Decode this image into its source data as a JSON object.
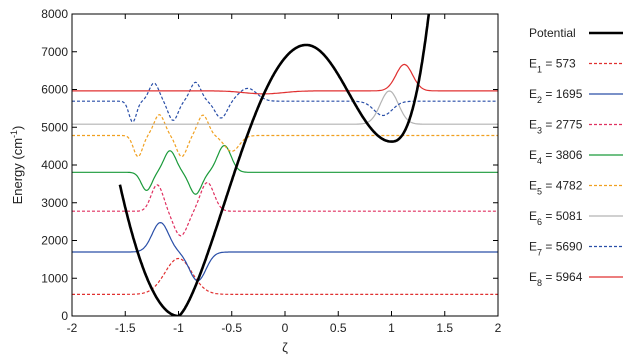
{
  "chart_data": {
    "type": "line",
    "xlabel": "ζ",
    "ylabel_main": "Energy (cm",
    "ylabel_sup": "-1",
    "ylabel_close": ")",
    "xlim": [
      -2,
      2
    ],
    "ylim": [
      0,
      8000
    ],
    "xticks": [
      "-2",
      "-1.5",
      "-1",
      "-0.5",
      "0",
      "0.5",
      "1",
      "1.5",
      "2"
    ],
    "yticks": [
      "0",
      "1000",
      "2000",
      "3000",
      "4000",
      "5000",
      "6000",
      "7000",
      "8000"
    ],
    "legend_position": "right",
    "potential": {
      "name": "Potential",
      "color": "#000000",
      "min_x": -1.0,
      "min_y": 0,
      "max_x": 0.2,
      "max_y": 7180,
      "local_min_x": 1.0,
      "local_min_y": 4620
    },
    "levels": [
      {
        "sym": "E",
        "sub": "1",
        "label_rest": " = 573",
        "energy": 573,
        "color": "#e03030",
        "dash": true,
        "lobes": [
          [
            -1.0,
            950,
            0.18
          ]
        ]
      },
      {
        "sym": "E",
        "sub": "2",
        "label_rest": " = 1695",
        "energy": 1695,
        "color": "#2a4fa8",
        "dash": false,
        "lobes": [
          [
            -1.17,
            780,
            0.11
          ],
          [
            -0.82,
            -760,
            0.11
          ]
        ]
      },
      {
        "sym": "E",
        "sub": "3",
        "label_rest": " = 2775",
        "energy": 2775,
        "color": "#e03060",
        "dash": true,
        "lobes": [
          [
            -1.2,
            700,
            0.08
          ],
          [
            -0.98,
            -650,
            0.09
          ],
          [
            -0.73,
            760,
            0.09
          ]
        ]
      },
      {
        "sym": "E",
        "sub": "4",
        "label_rest": " = 3806",
        "energy": 3806,
        "color": "#1a9a3a",
        "dash": false,
        "lobes": [
          [
            -1.3,
            -480,
            0.07
          ],
          [
            -1.08,
            570,
            0.08
          ],
          [
            -0.84,
            -580,
            0.08
          ],
          [
            -0.57,
            710,
            0.09
          ]
        ]
      },
      {
        "sym": "E",
        "sub": "5",
        "label_rest": " = 4782",
        "energy": 4782,
        "color": "#f0a020",
        "dash": true,
        "lobes": [
          [
            -1.38,
            -560,
            0.06
          ],
          [
            -1.18,
            550,
            0.07
          ],
          [
            -0.97,
            -560,
            0.07
          ],
          [
            -0.77,
            540,
            0.07
          ],
          [
            -0.5,
            -420,
            0.1
          ]
        ]
      },
      {
        "sym": "E",
        "sub": "6",
        "label_rest": " = 5081",
        "energy": 5081,
        "color": "#b4b4b4",
        "dash": false,
        "lobes": [
          [
            0.98,
            880,
            0.12
          ]
        ]
      },
      {
        "sym": "E",
        "sub": "7",
        "label_rest": " = 5690",
        "energy": 5690,
        "color": "#2a4fa8",
        "dash": true,
        "lobes": [
          [
            -1.43,
            -550,
            0.05
          ],
          [
            -1.23,
            480,
            0.065
          ],
          [
            -1.05,
            -510,
            0.065
          ],
          [
            -0.84,
            500,
            0.07
          ],
          [
            -0.6,
            -450,
            0.08
          ],
          [
            -0.35,
            340,
            0.12
          ],
          [
            0.92,
            -380,
            0.12
          ]
        ]
      },
      {
        "sym": "E",
        "sub": "8",
        "label_rest": " = 5964",
        "energy": 5964,
        "color": "#e03030",
        "dash": false,
        "lobes": [
          [
            1.12,
            700,
            0.11
          ],
          [
            -0.2,
            -80,
            0.25
          ]
        ]
      }
    ]
  }
}
